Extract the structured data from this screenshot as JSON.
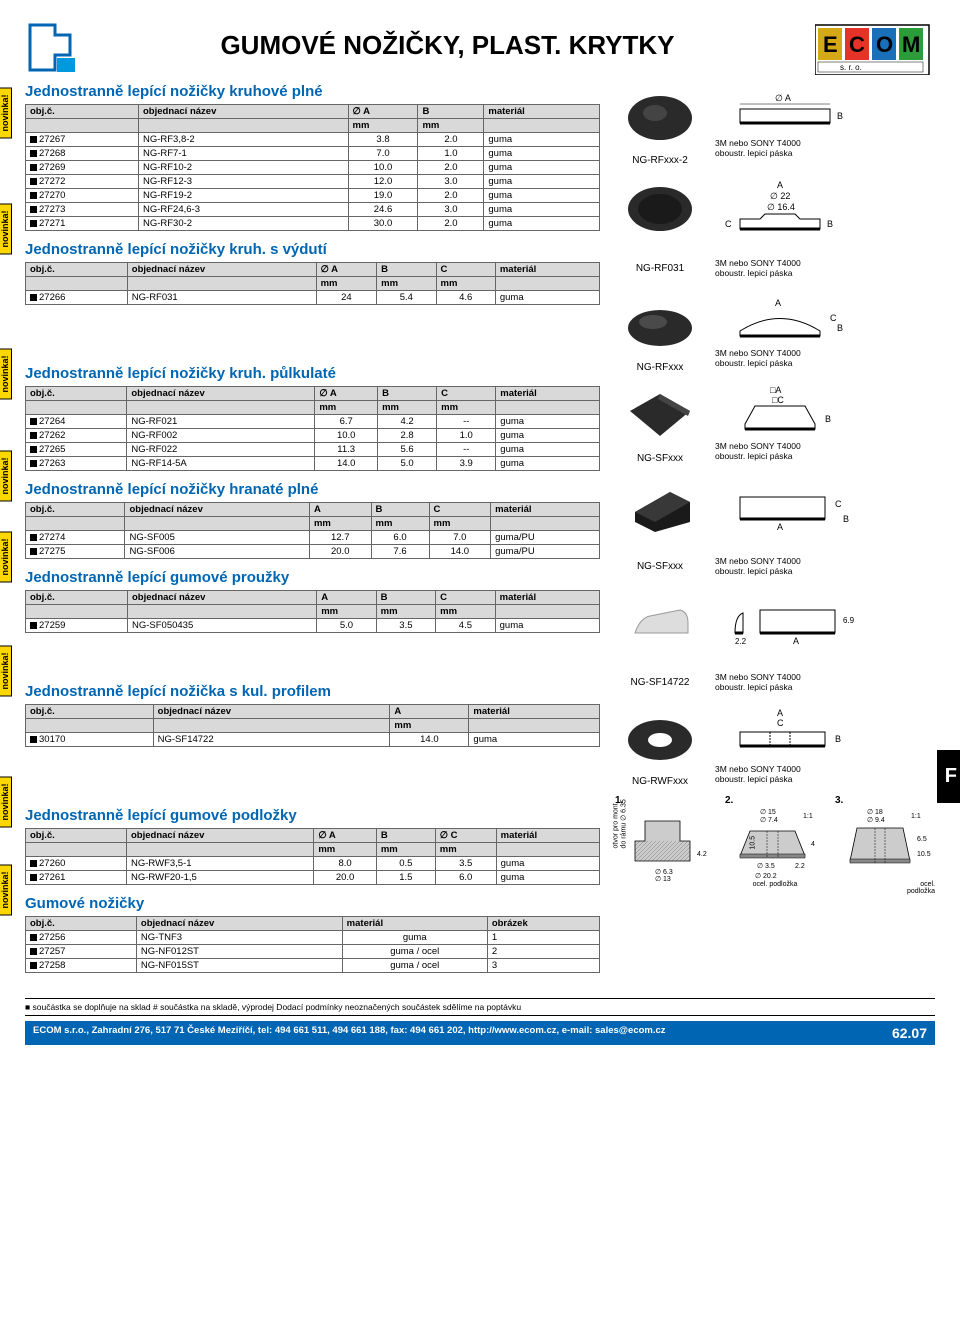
{
  "title": "GUMOVÉ NOŽIČKY, PLAST. KRYTKY",
  "novinka_label": "novinka!",
  "footer_note": "■ součástka se doplňuje na sklad # součástka na skladě, výprodej Dodací podmínky neoznačených součástek sdělíme na poptávku",
  "footer_company": "ECOM s.r.o., Zahradní 276, 517 71 České Meziříčí, tel: 494 661 511, 494 661 188, fax: 494 661 202, http://www.ecom.cz, e-mail: sales@ecom.cz",
  "page_num": "62.07",
  "side_tab": "F",
  "tape_note": "3M nebo SONY T4000\noboustr. lepicí páska",
  "col_obj": "obj.č.",
  "col_name": "objednací název",
  "col_A": "∅ A",
  "col_Ap": "A",
  "col_B": "B",
  "col_C": "C",
  "col_Cp": "∅ C",
  "col_mat": "materiál",
  "col_img": "obrázek",
  "unit_mm": "mm",
  "sections": {
    "s1": {
      "title": "Jednostranně lepící nožičky kruhové plné",
      "rows": [
        [
          "27267",
          "NG-RF3,8-2",
          "3.8",
          "2.0",
          "guma"
        ],
        [
          "27268",
          "NG-RF7-1",
          "7.0",
          "1.0",
          "guma"
        ],
        [
          "27269",
          "NG-RF10-2",
          "10.0",
          "2.0",
          "guma"
        ],
        [
          "27272",
          "NG-RF12-3",
          "12.0",
          "3.0",
          "guma"
        ],
        [
          "27270",
          "NG-RF19-2",
          "19.0",
          "2.0",
          "guma"
        ],
        [
          "27273",
          "NG-RF24,6-3",
          "24.6",
          "3.0",
          "guma"
        ],
        [
          "27271",
          "NG-RF30-2",
          "30.0",
          "2.0",
          "guma"
        ]
      ],
      "prod_label": "NG-RFxxx-2"
    },
    "s2": {
      "title": "Jednostranně lepící nožičky kruh. s výdutí",
      "rows": [
        [
          "27266",
          "NG-RF031",
          "24",
          "5.4",
          "4.6",
          "guma"
        ]
      ],
      "prod_label": "NG-RF031",
      "dim_a": "A",
      "dim_22": "∅ 22",
      "dim_164": "∅ 16.4"
    },
    "s3": {
      "title": "Jednostranně lepící nožičky kruh. půlkulaté",
      "rows": [
        [
          "27264",
          "NG-RF021",
          "6.7",
          "4.2",
          "--",
          "guma"
        ],
        [
          "27262",
          "NG-RF002",
          "10.0",
          "2.8",
          "1.0",
          "guma"
        ],
        [
          "27265",
          "NG-RF022",
          "11.3",
          "5.6",
          "--",
          "guma"
        ],
        [
          "27263",
          "NG-RF14-5A",
          "14.0",
          "5.0",
          "3.9",
          "guma"
        ]
      ],
      "prod_label": "NG-RFxxx"
    },
    "s4": {
      "title": "Jednostranně lepící nožičky hranaté plné",
      "rows": [
        [
          "27274",
          "NG-SF005",
          "12.7",
          "6.0",
          "7.0",
          "guma/PU"
        ],
        [
          "27275",
          "NG-SF006",
          "20.0",
          "7.6",
          "14.0",
          "guma/PU"
        ]
      ],
      "prod_label": "NG-SFxxx"
    },
    "s5": {
      "title": "Jednostranně lepící gumové proužky",
      "rows": [
        [
          "27259",
          "NG-SF050435",
          "5.0",
          "3.5",
          "4.5",
          "guma"
        ]
      ],
      "prod_label": "NG-SFxxx"
    },
    "s6": {
      "title": "Jednostranně lepící nožička s kul. profilem",
      "rows": [
        [
          "30170",
          "NG-SF14722",
          "14.0",
          "guma"
        ]
      ],
      "prod_label": "NG-SF14722",
      "dim_22": "2.2",
      "dim_69": "6.9"
    },
    "s7": {
      "title": "Jednostranně lepící gumové podložky",
      "rows": [
        [
          "27260",
          "NG-RWF3,5-1",
          "8.0",
          "0.5",
          "3.5",
          "guma"
        ],
        [
          "27261",
          "NG-RWF20-1,5",
          "20.0",
          "1.5",
          "6.0",
          "guma"
        ]
      ],
      "prod_label": "NG-RWFxxx"
    },
    "s8": {
      "title": "Gumové nožičky",
      "rows": [
        [
          "27256",
          "NG-TNF3",
          "guma",
          "1"
        ],
        [
          "27257",
          "NG-NF012ST",
          "guma / ocel",
          "2"
        ],
        [
          "27258",
          "NG-NF015ST",
          "guma / ocel",
          "3"
        ]
      ]
    }
  },
  "bd": {
    "l1": "1.",
    "l2": "2.",
    "l3": "3.",
    "d1": {
      "a": "otvor pro mont.",
      "b": "do rámu ∅ 6.35",
      "c": "10.5",
      "d": "∅ 6.3",
      "e": "∅ 13",
      "f": "4.2"
    },
    "d2": {
      "a": "∅ 15",
      "b": "∅ 7.4",
      "c": "1:1",
      "d": "4",
      "e": "∅ 3.5",
      "f": "∅ 20.2",
      "g": "2.2",
      "h": "ocel. podložka"
    },
    "d3": {
      "a": "∅ 18",
      "b": "∅ 9.4",
      "c": "1:1",
      "d": "6.5",
      "e": "10.5",
      "f": "ocel.",
      "g": "podložka"
    }
  },
  "diag_labels": {
    "A": "∅ A",
    "Ap": "A",
    "B": "B",
    "C": "C",
    "sqA": "□A",
    "sqC": "□C"
  }
}
